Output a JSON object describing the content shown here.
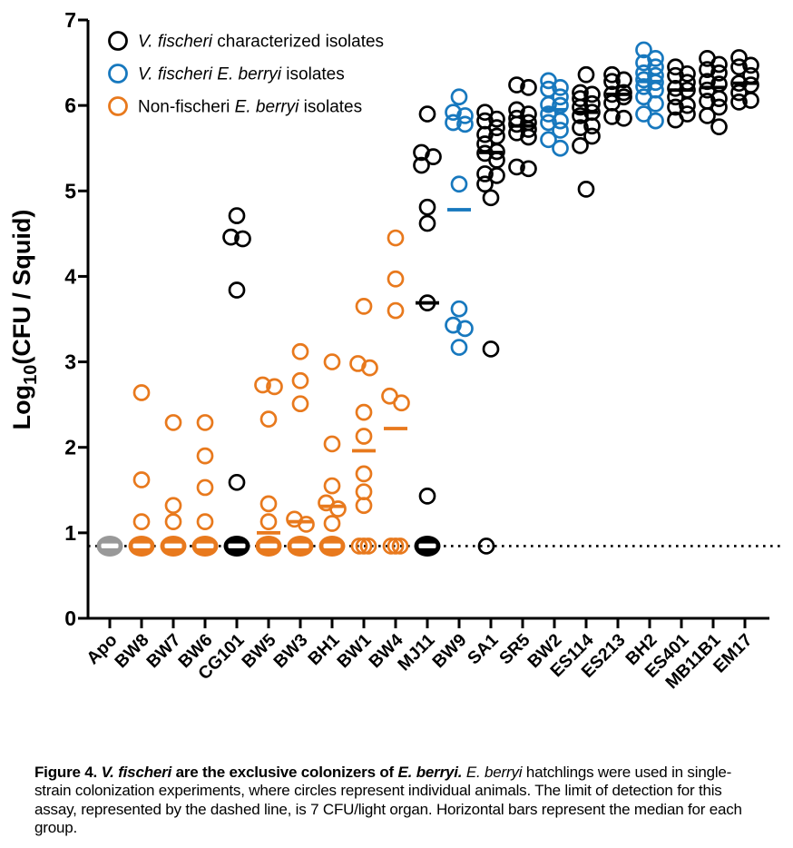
{
  "colors": {
    "black": "#000000",
    "blue": "#1778be",
    "orange": "#e8791d",
    "gray": "#999999",
    "white": "#ffffff"
  },
  "legend": {
    "items": [
      {
        "color": "black",
        "segments": [
          {
            "t": "V. fischeri",
            "i": 1
          },
          {
            "t": " characterized isolates",
            "i": 0
          }
        ]
      },
      {
        "color": "blue",
        "segments": [
          {
            "t": "V. fischeri E. berryi",
            "i": 1
          },
          {
            "t": " isolates",
            "i": 0
          }
        ]
      },
      {
        "color": "orange",
        "segments": [
          {
            "t": "Non-fischeri ",
            "i": 0
          },
          {
            "t": "E. berryi",
            "i": 1
          },
          {
            "t": " isolates",
            "i": 0
          }
        ]
      }
    ]
  },
  "caption": {
    "segments": [
      {
        "t": "Figure 4. ",
        "b": 1,
        "i": 0
      },
      {
        "t": "V. fischeri",
        "b": 1,
        "i": 1
      },
      {
        "t": " are the exclusive colonizers of ",
        "b": 1,
        "i": 0
      },
      {
        "t": "E. berryi.",
        "b": 1,
        "i": 1
      },
      {
        "t": " ",
        "b": 0,
        "i": 0
      },
      {
        "t": "E. berryi",
        "b": 0,
        "i": 1
      },
      {
        "t": " hatchlings were used in single-strain colonization experiments, where circles represent individual animals. The limit of detection for this assay, represented by the dashed line, is 7 CFU/light organ. Horizontal bars represent the median for each group.",
        "b": 0,
        "i": 0
      }
    ]
  },
  "chart_data": {
    "type": "scatter",
    "title": "",
    "ylabel_parts": {
      "prefix": "Log",
      "sub": "10",
      "suffix": "(CFU / Squid)"
    },
    "ylabel": "Log10(CFU / Squid)",
    "ylim": [
      0,
      7
    ],
    "yticks": [
      0,
      1,
      2,
      3,
      4,
      5,
      6,
      7
    ],
    "detection_limit_log": 0.845,
    "detection_limit_note": "7 CFU/light organ",
    "categories": [
      "Apo",
      "BW8",
      "BW7",
      "BW6",
      "CG101",
      "BW5",
      "BW3",
      "BH1",
      "BW1",
      "BW4",
      "MJ11",
      "BW9",
      "SA1",
      "SR5",
      "BW2",
      "ES114",
      "ES213",
      "BH2",
      "ES401",
      "MB11B1",
      "EM17"
    ],
    "groups": [
      {
        "name": "Apo",
        "color": "gray",
        "points": [],
        "lod": {
          "style": "blob"
        },
        "median": 0.845
      },
      {
        "name": "BW8",
        "color": "orange",
        "points": [
          2.64,
          1.62,
          1.13
        ],
        "lod": {
          "style": "blob"
        },
        "median": 0.845
      },
      {
        "name": "BW7",
        "color": "orange",
        "points": [
          2.29,
          1.32,
          1.13
        ],
        "lod": {
          "style": "blob"
        },
        "median": 0.845
      },
      {
        "name": "BW6",
        "color": "orange",
        "points": [
          2.29,
          1.9,
          1.53,
          1.13
        ],
        "lod": {
          "style": "blob"
        },
        "median": 0.845
      },
      {
        "name": "CG101",
        "color": "black",
        "points": [
          4.71,
          4.46,
          4.44,
          3.84,
          1.59
        ],
        "lod": {
          "style": "blob"
        },
        "median": 0.845
      },
      {
        "name": "BW5",
        "color": "orange",
        "points": [
          2.73,
          2.71,
          2.33,
          1.34,
          1.13
        ],
        "lod": {
          "style": "blob"
        },
        "median": 1.0
      },
      {
        "name": "BW3",
        "color": "orange",
        "points": [
          3.12,
          2.78,
          2.51,
          1.16,
          1.1
        ],
        "lod": {
          "style": "blob"
        },
        "median": 1.13
      },
      {
        "name": "BH1",
        "color": "orange",
        "points": [
          3.0,
          2.04,
          1.55,
          1.35,
          1.28,
          1.11
        ],
        "lod": {
          "style": "blob"
        },
        "median": 1.31
      },
      {
        "name": "BW1",
        "color": "orange",
        "points": [
          3.65,
          2.98,
          2.93,
          2.41,
          2.13,
          1.69,
          1.48,
          1.32
        ],
        "lod": {
          "style": "open",
          "count": 3
        },
        "median": 1.96
      },
      {
        "name": "BW4",
        "color": "orange",
        "points": [
          4.45,
          3.97,
          3.6,
          2.6,
          2.52
        ],
        "lod": {
          "style": "open",
          "count": 3
        },
        "median": 2.22
      },
      {
        "name": "MJ11",
        "color": "black",
        "points": [
          5.9,
          5.45,
          5.4,
          5.3,
          4.81,
          4.62,
          3.69,
          1.43
        ],
        "lod": {
          "style": "blob"
        },
        "median": 3.69
      },
      {
        "name": "BW9",
        "color": "blue",
        "points": [
          6.1,
          5.92,
          5.88,
          5.8,
          5.78,
          5.08,
          3.62,
          3.43,
          3.39,
          3.17
        ],
        "lod": null,
        "median": 4.78
      },
      {
        "name": "SA1",
        "color": "black",
        "points": [
          5.92,
          5.84,
          5.82,
          5.74,
          5.66,
          5.64,
          5.55,
          5.46,
          5.44,
          5.36,
          5.2,
          5.18,
          5.08,
          4.92,
          3.15
        ],
        "lod": {
          "style": "open",
          "count": 1
        },
        "median": 5.45
      },
      {
        "name": "SR5",
        "color": "black",
        "points": [
          6.24,
          6.21,
          5.95,
          5.9,
          5.85,
          5.8,
          5.78,
          5.72,
          5.68,
          5.63,
          5.28,
          5.26
        ],
        "lod": null,
        "median": 5.76
      },
      {
        "name": "BW2",
        "color": "blue",
        "points": [
          6.29,
          6.21,
          6.19,
          6.1,
          6.01,
          6.0,
          5.9,
          5.82,
          5.8,
          5.71,
          5.6,
          5.5
        ],
        "lod": null,
        "median": 5.95
      },
      {
        "name": "ES114",
        "color": "black",
        "points": [
          6.36,
          6.15,
          6.13,
          6.08,
          6.02,
          5.98,
          5.92,
          5.88,
          5.76,
          5.74,
          5.64,
          5.53,
          5.02
        ],
        "lod": null,
        "median": 5.92
      },
      {
        "name": "ES213",
        "color": "black",
        "points": [
          6.36,
          6.3,
          6.28,
          6.15,
          6.13,
          6.1,
          6.03,
          5.87,
          5.85
        ],
        "lod": null,
        "median": 6.13
      },
      {
        "name": "BH2",
        "color": "blue",
        "points": [
          6.65,
          6.55,
          6.5,
          6.45,
          6.38,
          6.35,
          6.3,
          6.27,
          6.22,
          6.18,
          6.1,
          6.02,
          5.9,
          5.82
        ],
        "lod": null,
        "median": 6.28
      },
      {
        "name": "ES401",
        "color": "black",
        "points": [
          6.45,
          6.37,
          6.35,
          6.27,
          6.2,
          6.18,
          6.1,
          6.0,
          5.98,
          5.9,
          5.83
        ],
        "lod": null,
        "median": 6.18
      },
      {
        "name": "MB11B1",
        "color": "black",
        "points": [
          6.55,
          6.48,
          6.42,
          6.38,
          6.28,
          6.25,
          6.18,
          6.08,
          6.05,
          5.98,
          5.88,
          5.75
        ],
        "lod": null,
        "median": 6.21
      },
      {
        "name": "EM17",
        "color": "black",
        "points": [
          6.56,
          6.47,
          6.45,
          6.35,
          6.26,
          6.24,
          6.15,
          6.06,
          6.04
        ],
        "lod": null,
        "median": 6.26
      }
    ],
    "legend_position": "top-left",
    "grid": false
  }
}
